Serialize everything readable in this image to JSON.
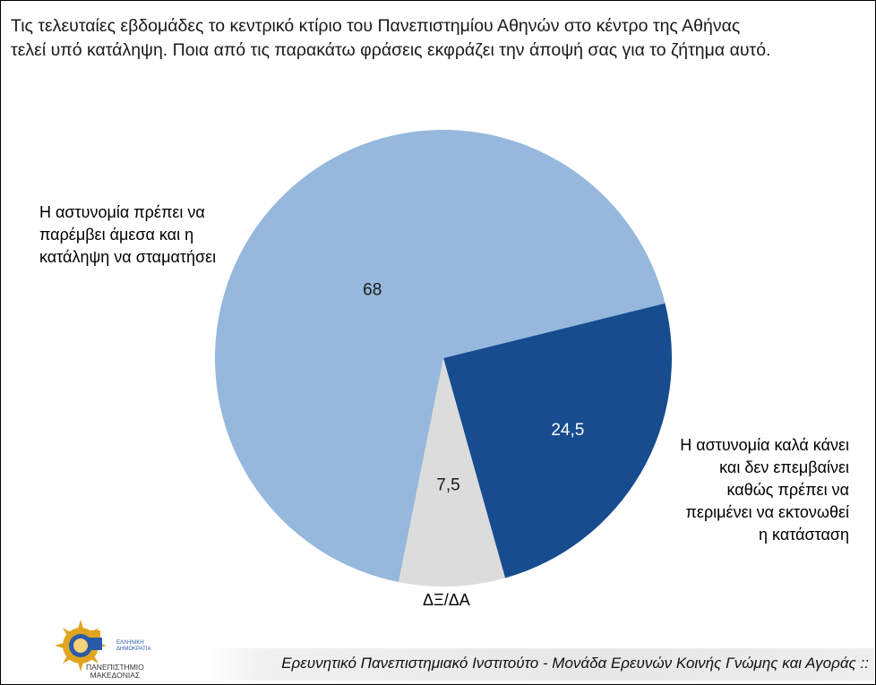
{
  "question": {
    "line1": "Τις τελευταίες εβδομάδες το κεντρικό κτίριο του Πανεπιστημίου Αθηνών στο κέντρο της Αθήνας",
    "line2": "τελεί υπό κατάληψη. Ποια από τις παρακάτω φράσεις εκφράζει την άποψή σας για το ζήτημα αυτό."
  },
  "chart_data": {
    "type": "pie",
    "categories": [
      "Η αστυνομία πρέπει να παρέμβει άμεσα και η κατάληψη να σταματήσει",
      "Η αστυνομία καλά κάνει και δεν επεμβαίνει καθώς πρέπει να περιμένει να εκτονωθεί η κατάσταση",
      "ΔΞ/ΔΑ"
    ],
    "values": [
      68,
      24.5,
      7.5
    ],
    "value_labels": [
      "68",
      "24,5",
      "7,5"
    ],
    "colors": [
      "#95b8dc",
      "#174c8f",
      "#dcdcdc"
    ],
    "label_colors": [
      "#1a1a1a",
      "#ffffff",
      "#1a1a1a"
    ]
  },
  "labels": {
    "left": [
      "Η αστυνομία πρέπει να",
      "παρέμβει άμεσα και η",
      "κατάληψη να σταματήσει"
    ],
    "right": [
      "Η αστυνομία καλά κάνει",
      "και δεν επεμβαίνει",
      "καθώς πρέπει να",
      "περιμένει να εκτονωθεί",
      "η κατάσταση"
    ],
    "bottom": "ΔΞ/ΔΑ"
  },
  "footer": {
    "text": "Ερευνητικό Πανεπιστημιακό Ινστιτούτο - Μονάδα Ερευνών Κοινής Γνώμης και Αγοράς ::"
  },
  "logo": {
    "line1": "ΠΑΝΕΠΙΣΤΗΜΙΟ",
    "line2": "ΜΑΚΕΔΟΝΙΑΣ",
    "small1": "ΕΛΛΗΝΙΚΗ",
    "small2": "ΔΗΜΟΚΡΑΤΙΑ"
  }
}
